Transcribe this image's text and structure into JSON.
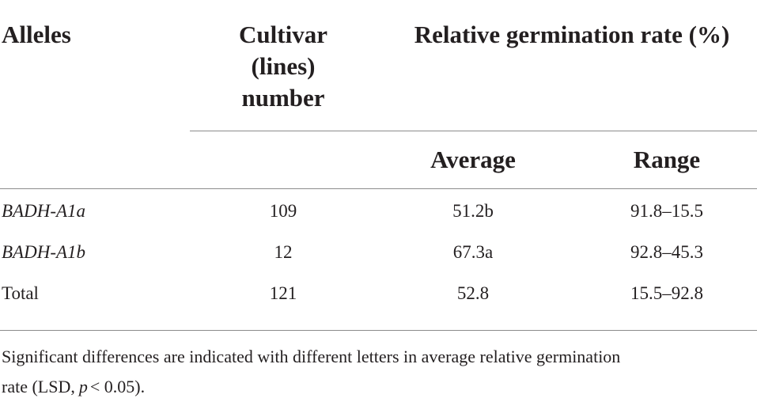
{
  "table": {
    "header": {
      "alleles": "Alleles",
      "cultivar": [
        "Cultivar",
        "(lines)",
        "number"
      ],
      "germination": "Relative germination rate (%)",
      "average": "Average",
      "range": "Range"
    },
    "rows": [
      [
        "BADH-A1a",
        "109",
        "51.2b",
        "91.8–15.5"
      ],
      [
        "BADH-A1b",
        "12",
        "67.3a",
        "92.8–45.3"
      ],
      [
        "Total",
        "121",
        "52.8",
        "15.5–92.8"
      ]
    ]
  },
  "footnote": {
    "line1": "Significant differences are indicated with different letters in average relative germination",
    "line2_start": "rate (LSD,",
    "line2_italic": "p",
    "line2_end": "< 0.05)."
  }
}
